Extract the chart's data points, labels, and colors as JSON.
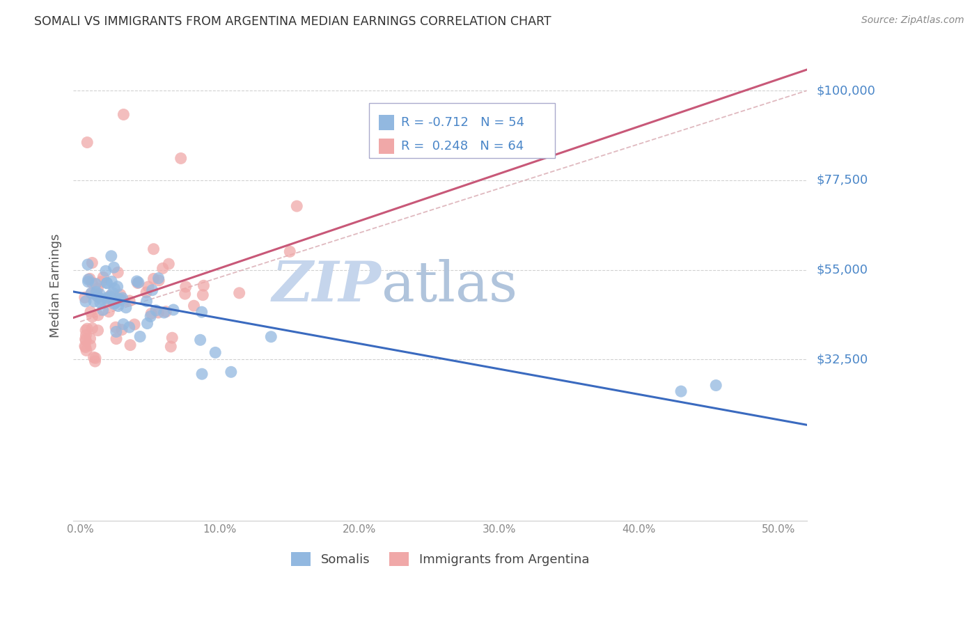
{
  "title": "SOMALI VS IMMIGRANTS FROM ARGENTINA MEDIAN EARNINGS CORRELATION CHART",
  "source": "Source: ZipAtlas.com",
  "ylabel": "Median Earnings",
  "xlabel_ticks": [
    "0.0%",
    "10.0%",
    "20.0%",
    "30.0%",
    "40.0%",
    "50.0%"
  ],
  "xlabel_vals": [
    0.0,
    0.1,
    0.2,
    0.3,
    0.4,
    0.5
  ],
  "ytick_labels": [
    "$32,500",
    "$55,000",
    "$77,500",
    "$100,000"
  ],
  "ytick_vals": [
    32500,
    55000,
    77500,
    100000
  ],
  "ylim": [
    -8000,
    110000
  ],
  "xlim": [
    -0.005,
    0.52
  ],
  "somali_R": -0.712,
  "somali_N": 54,
  "argentina_R": 0.248,
  "argentina_N": 64,
  "somali_color": "#92b8e0",
  "argentina_color": "#f0a8a8",
  "trend_somali_color": "#3a6abf",
  "trend_argentina_color": "#c85878",
  "trend_dashed_color": "#d8a8b0",
  "watermark_zip_color": "#c8d8ee",
  "watermark_atlas_color": "#b8c8e0",
  "background_color": "#ffffff",
  "grid_color": "#cccccc",
  "axis_label_color": "#4a86c8",
  "title_color": "#333333",
  "source_color": "#888888",
  "xlabel_color": "#888888",
  "ylabel_color": "#555555",
  "legend_border": "#aaaacc",
  "legend_bg": "#ffffff"
}
